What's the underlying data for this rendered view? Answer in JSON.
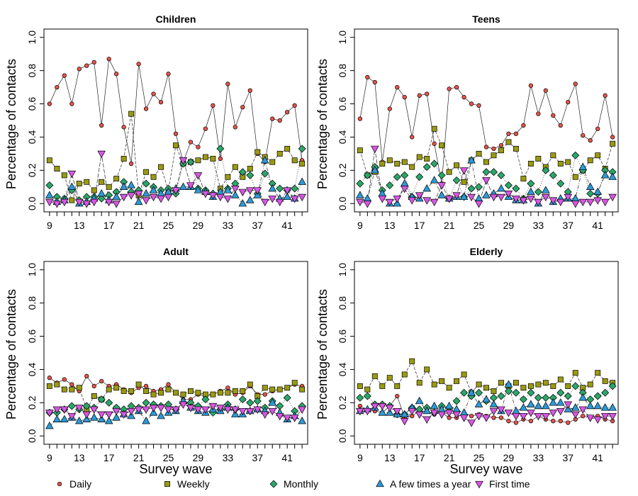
{
  "chart_data": [
    {
      "type": "line",
      "title": "Children",
      "xlabel": "",
      "ylabel": "Percentage of contacts",
      "ylim": [
        0,
        1
      ],
      "y_ticks": [
        "0.0",
        "0.2",
        "0.4",
        "0.6",
        "0.8",
        "1.0"
      ],
      "x_ticks": [
        "9",
        "13",
        "17",
        "21",
        "25",
        "29",
        "33",
        "37",
        "41"
      ],
      "x": [
        9,
        10,
        11,
        12,
        13,
        14,
        15,
        16,
        17,
        18,
        19,
        20,
        21,
        22,
        23,
        24,
        25,
        26,
        27,
        28,
        29,
        30,
        31,
        32,
        33,
        34,
        35,
        36,
        37,
        38,
        39,
        40,
        41,
        42,
        43
      ],
      "series": [
        {
          "name": "Daily",
          "values": [
            0.6,
            0.7,
            0.77,
            0.6,
            0.81,
            0.83,
            0.85,
            0.47,
            0.87,
            0.78,
            0.46,
            0.24,
            0.84,
            0.57,
            0.66,
            0.61,
            0.78,
            0.42,
            0.25,
            0.37,
            0.34,
            0.45,
            0.59,
            0.27,
            0.72,
            0.46,
            0.58,
            0.68,
            0.3,
            0.25,
            0.51,
            0.5,
            0.55,
            0.59,
            0.26
          ]
        },
        {
          "name": "Weekly",
          "values": [
            0.26,
            0.21,
            0.17,
            0.02,
            0.12,
            0.13,
            0.08,
            0.13,
            0.1,
            0.15,
            0.27,
            0.54,
            0.05,
            0.19,
            0.16,
            0.22,
            0.08,
            0.35,
            0.24,
            0.25,
            0.26,
            0.28,
            0.27,
            0.09,
            0.16,
            0.22,
            0.16,
            0.21,
            0.31,
            0.28,
            0.25,
            0.3,
            0.33,
            0.26,
            0.24
          ]
        },
        {
          "name": "Monthly",
          "values": [
            0.11,
            0.04,
            0.03,
            0.08,
            0.02,
            0.04,
            0.04,
            0.03,
            0.05,
            0.07,
            0.13,
            0.07,
            0.08,
            0.12,
            0.1,
            0.08,
            0.09,
            0.06,
            0.24,
            0.25,
            0.09,
            0.08,
            0.06,
            0.33,
            0.09,
            0.12,
            0.19,
            0.17,
            0.06,
            0.18,
            0.12,
            0.09,
            0.08,
            0.09,
            0.33
          ]
        },
        {
          "name": "A few times a year",
          "values": [
            0.05,
            0.01,
            0.02,
            0.1,
            0.0,
            0.01,
            0.03,
            0.06,
            0.02,
            0.04,
            0.1,
            0.11,
            0.01,
            0.06,
            0.08,
            0.06,
            0.07,
            0.09,
            0.1,
            0.1,
            0.08,
            0.07,
            0.04,
            0.07,
            0.08,
            0.05,
            0.0,
            0.02,
            0.05,
            0.26,
            0.09,
            0.03,
            0.04,
            0.03,
            0.13
          ]
        },
        {
          "name": "First time",
          "values": [
            0.01,
            0.0,
            0.01,
            0.18,
            0.01,
            0.0,
            0.01,
            0.3,
            0.01,
            0.0,
            0.04,
            0.05,
            0.06,
            0.02,
            0.04,
            0.03,
            0.04,
            0.08,
            0.26,
            0.11,
            0.17,
            0.06,
            0.05,
            0.04,
            0.03,
            0.09,
            0.07,
            0.08,
            0.08,
            0.01,
            0.03,
            0.01,
            0.08,
            0.03,
            0.04
          ]
        }
      ]
    },
    {
      "type": "line",
      "title": "Teens",
      "xlabel": "",
      "ylabel": "Percentage of contacts",
      "ylim": [
        0,
        1
      ],
      "y_ticks": [
        "0.0",
        "0.2",
        "0.4",
        "0.6",
        "0.8",
        "1.0"
      ],
      "x_ticks": [
        "9",
        "13",
        "17",
        "21",
        "25",
        "29",
        "33",
        "37",
        "41"
      ],
      "x": [
        9,
        10,
        11,
        12,
        13,
        14,
        15,
        16,
        17,
        18,
        19,
        20,
        21,
        22,
        23,
        24,
        25,
        26,
        27,
        28,
        29,
        30,
        31,
        32,
        33,
        34,
        35,
        36,
        37,
        38,
        39,
        40,
        41,
        42,
        43
      ],
      "series": [
        {
          "name": "Daily",
          "values": [
            0.51,
            0.76,
            0.73,
            0.25,
            0.57,
            0.7,
            0.64,
            0.4,
            0.65,
            0.66,
            0.36,
            0.12,
            0.69,
            0.7,
            0.64,
            0.6,
            0.59,
            0.34,
            0.33,
            0.35,
            0.42,
            0.42,
            0.47,
            0.71,
            0.54,
            0.68,
            0.53,
            0.47,
            0.61,
            0.72,
            0.41,
            0.38,
            0.45,
            0.65,
            0.4
          ]
        },
        {
          "name": "Weekly",
          "values": [
            0.32,
            0.17,
            0.19,
            0.24,
            0.26,
            0.24,
            0.25,
            0.22,
            0.28,
            0.27,
            0.45,
            0.35,
            0.19,
            0.23,
            0.13,
            0.26,
            0.3,
            0.25,
            0.29,
            0.32,
            0.37,
            0.33,
            0.15,
            0.24,
            0.27,
            0.22,
            0.29,
            0.24,
            0.25,
            0.16,
            0.2,
            0.26,
            0.29,
            0.21,
            0.36
          ]
        },
        {
          "name": "Monthly",
          "values": [
            0.12,
            0.17,
            0.22,
            0.08,
            0.11,
            0.16,
            0.17,
            0.04,
            0.16,
            0.22,
            0.24,
            0.17,
            0.03,
            0.14,
            0.04,
            0.09,
            0.1,
            0.19,
            0.19,
            0.17,
            0.11,
            0.09,
            0.03,
            0.12,
            0.07,
            0.2,
            0.17,
            0.12,
            0.07,
            0.29,
            0.2,
            0.06,
            0.06,
            0.2,
            0.19
          ]
        },
        {
          "name": "A few times a year",
          "values": [
            0.05,
            0.03,
            0.2,
            0.06,
            0.0,
            0.0,
            0.12,
            0.04,
            0.03,
            0.09,
            0.14,
            0.05,
            0.03,
            0.04,
            0.04,
            0.26,
            0.03,
            0.05,
            0.06,
            0.09,
            0.04,
            0.02,
            0.02,
            0.07,
            0.0,
            0.08,
            0.01,
            0.03,
            0.03,
            0.03,
            0.22,
            0.1,
            0.07,
            0.17,
            0.16
          ]
        },
        {
          "name": "First time",
          "values": [
            0.01,
            0.0,
            0.33,
            0.03,
            0.01,
            0.03,
            0.09,
            0.02,
            0.05,
            0.02,
            0.01,
            0.11,
            0.03,
            0.05,
            0.2,
            0.04,
            0.0,
            0.14,
            0.04,
            0.04,
            0.06,
            0.03,
            0.02,
            0.03,
            0.01,
            0.04,
            0.02,
            0.01,
            0.04,
            0.0,
            0.01,
            0.01,
            0.02,
            0.01,
            0.04
          ]
        }
      ]
    },
    {
      "type": "line",
      "title": "Adult",
      "xlabel": "Survey wave",
      "ylabel": "Percentage of contacts",
      "ylim": [
        0,
        1
      ],
      "y_ticks": [
        "0.0",
        "0.2",
        "0.4",
        "0.6",
        "0.8",
        "1.0"
      ],
      "x_ticks": [
        "9",
        "13",
        "17",
        "21",
        "25",
        "29",
        "33",
        "37",
        "41"
      ],
      "x": [
        9,
        10,
        11,
        12,
        13,
        14,
        15,
        16,
        17,
        18,
        19,
        20,
        21,
        22,
        23,
        24,
        25,
        26,
        27,
        28,
        29,
        30,
        31,
        32,
        33,
        34,
        35,
        36,
        37,
        38,
        39,
        40,
        41,
        42,
        43
      ],
      "series": [
        {
          "name": "Daily",
          "values": [
            0.35,
            0.32,
            0.34,
            0.31,
            0.27,
            0.36,
            0.3,
            0.33,
            0.3,
            0.31,
            0.28,
            0.26,
            0.29,
            0.3,
            0.27,
            0.28,
            0.31,
            0.26,
            0.22,
            0.22,
            0.25,
            0.24,
            0.25,
            0.27,
            0.29,
            0.25,
            0.26,
            0.3,
            0.25,
            0.25,
            0.27,
            0.28,
            0.29,
            0.31,
            0.3
          ]
        },
        {
          "name": "Weekly",
          "values": [
            0.3,
            0.31,
            0.28,
            0.28,
            0.29,
            0.16,
            0.24,
            0.22,
            0.28,
            0.29,
            0.27,
            0.27,
            0.31,
            0.27,
            0.25,
            0.26,
            0.28,
            0.26,
            0.25,
            0.27,
            0.26,
            0.25,
            0.25,
            0.26,
            0.26,
            0.27,
            0.27,
            0.31,
            0.24,
            0.29,
            0.28,
            0.28,
            0.29,
            0.32,
            0.28
          ]
        },
        {
          "name": "Monthly",
          "values": [
            0.14,
            0.14,
            0.16,
            0.18,
            0.16,
            0.18,
            0.17,
            0.22,
            0.2,
            0.17,
            0.16,
            0.18,
            0.17,
            0.2,
            0.19,
            0.18,
            0.19,
            0.16,
            0.2,
            0.2,
            0.18,
            0.22,
            0.14,
            0.16,
            0.19,
            0.16,
            0.22,
            0.2,
            0.21,
            0.17,
            0.21,
            0.18,
            0.23,
            0.15,
            0.18
          ]
        },
        {
          "name": "A few times a year",
          "values": [
            0.06,
            0.1,
            0.1,
            0.11,
            0.09,
            0.1,
            0.11,
            0.1,
            0.09,
            0.11,
            0.13,
            0.12,
            0.15,
            0.09,
            0.14,
            0.12,
            0.14,
            0.15,
            0.21,
            0.17,
            0.15,
            0.14,
            0.16,
            0.15,
            0.17,
            0.13,
            0.13,
            0.15,
            0.16,
            0.15,
            0.2,
            0.14,
            0.1,
            0.12,
            0.09
          ]
        },
        {
          "name": "First time",
          "values": [
            0.14,
            0.16,
            0.16,
            0.12,
            0.17,
            0.13,
            0.16,
            0.13,
            0.13,
            0.15,
            0.13,
            0.15,
            0.16,
            0.16,
            0.17,
            0.17,
            0.16,
            0.16,
            0.19,
            0.17,
            0.16,
            0.16,
            0.18,
            0.17,
            0.16,
            0.16,
            0.15,
            0.15,
            0.16,
            0.13,
            0.15,
            0.12,
            0.11,
            0.11,
            0.16
          ]
        }
      ]
    },
    {
      "type": "line",
      "title": "Elderly",
      "xlabel": "Survey wave",
      "ylabel": "Percentage of contacts",
      "ylim": [
        0,
        1
      ],
      "y_ticks": [
        "0.0",
        "0.2",
        "0.4",
        "0.6",
        "0.8",
        "1.0"
      ],
      "x_ticks": [
        "9",
        "13",
        "17",
        "21",
        "25",
        "29",
        "33",
        "37",
        "41"
      ],
      "x": [
        9,
        10,
        11,
        12,
        13,
        14,
        15,
        16,
        17,
        18,
        19,
        20,
        21,
        22,
        23,
        24,
        25,
        26,
        27,
        28,
        29,
        30,
        31,
        32,
        33,
        34,
        35,
        36,
        37,
        38,
        39,
        40,
        41,
        42,
        43
      ],
      "series": [
        {
          "name": "Daily",
          "values": [
            0.18,
            0.16,
            0.15,
            0.14,
            0.18,
            0.24,
            0.11,
            0.12,
            0.15,
            0.15,
            0.13,
            0.14,
            0.11,
            0.11,
            0.14,
            0.12,
            0.13,
            0.12,
            0.11,
            0.11,
            0.09,
            0.08,
            0.1,
            0.09,
            0.12,
            0.1,
            0.09,
            0.09,
            0.08,
            0.1,
            0.12,
            0.11,
            0.12,
            0.1,
            0.09
          ]
        },
        {
          "name": "Weekly",
          "values": [
            0.3,
            0.28,
            0.36,
            0.3,
            0.35,
            0.3,
            0.37,
            0.45,
            0.32,
            0.4,
            0.31,
            0.33,
            0.29,
            0.33,
            0.37,
            0.26,
            0.31,
            0.29,
            0.27,
            0.32,
            0.3,
            0.32,
            0.29,
            0.3,
            0.31,
            0.32,
            0.3,
            0.34,
            0.3,
            0.38,
            0.29,
            0.31,
            0.38,
            0.33,
            0.32
          ]
        },
        {
          "name": "Monthly",
          "values": [
            0.23,
            0.24,
            0.19,
            0.19,
            0.18,
            0.13,
            0.13,
            0.17,
            0.16,
            0.17,
            0.14,
            0.18,
            0.17,
            0.21,
            0.26,
            0.24,
            0.26,
            0.21,
            0.23,
            0.24,
            0.27,
            0.26,
            0.22,
            0.26,
            0.23,
            0.23,
            0.23,
            0.26,
            0.24,
            0.3,
            0.26,
            0.22,
            0.24,
            0.26,
            0.3
          ]
        },
        {
          "name": "A few times a year",
          "values": [
            0.15,
            0.16,
            0.17,
            0.14,
            0.14,
            0.13,
            0.13,
            0.17,
            0.21,
            0.15,
            0.18,
            0.16,
            0.18,
            0.16,
            0.14,
            0.26,
            0.19,
            0.22,
            0.19,
            0.15,
            0.31,
            0.15,
            0.17,
            0.19,
            0.18,
            0.18,
            0.2,
            0.2,
            0.16,
            0.17,
            0.23,
            0.18,
            0.18,
            0.17,
            0.17
          ]
        },
        {
          "name": "First time",
          "values": [
            0.15,
            0.15,
            0.18,
            0.18,
            0.17,
            0.15,
            0.09,
            0.15,
            0.13,
            0.1,
            0.14,
            0.13,
            0.14,
            0.13,
            0.11,
            0.08,
            0.12,
            0.11,
            0.15,
            0.16,
            0.14,
            0.12,
            0.12,
            0.14,
            0.12,
            0.12,
            0.14,
            0.15,
            0.19,
            0.13,
            0.16,
            0.11,
            0.1,
            0.12,
            0.12
          ]
        }
      ]
    }
  ],
  "legend": [
    {
      "label": "Daily",
      "shape": "circle",
      "fill": "#e8534a"
    },
    {
      "label": "Weekly",
      "shape": "square",
      "fill": "#9a9a10"
    },
    {
      "label": "Monthly",
      "shape": "diamond",
      "fill": "#2aa76a"
    },
    {
      "label": "A few times a year",
      "shape": "triangle-up",
      "fill": "#2b9ad8"
    },
    {
      "label": "First time",
      "shape": "triangle-down",
      "fill": "#d955e4"
    }
  ]
}
